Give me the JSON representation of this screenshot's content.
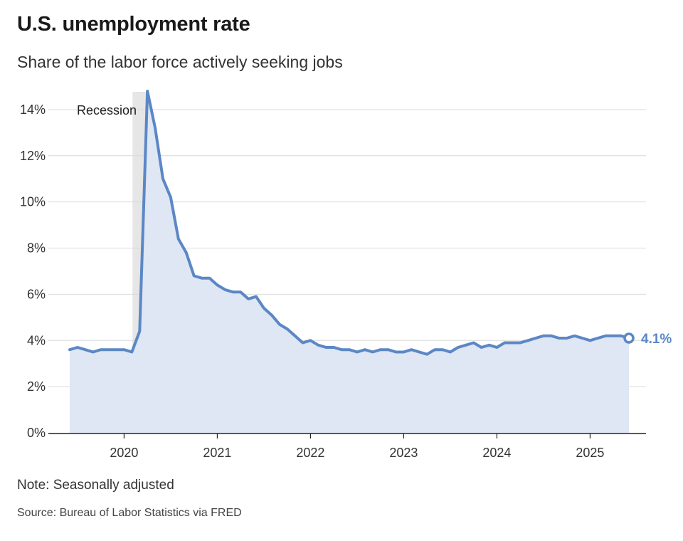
{
  "header": {
    "title": "U.S. unemployment rate",
    "subtitle": "Share of the labor force actively seeking jobs"
  },
  "footer": {
    "note": "Note: Seasonally adjusted",
    "source": "Source: Bureau of Labor Statistics via FRED"
  },
  "colors": {
    "line": "#5b87c5",
    "area": "#dfe6f4",
    "recession": "#e6e6e6",
    "grid": "#d9d9d9",
    "axis": "#222222"
  },
  "chart_data": {
    "type": "area",
    "title": "U.S. unemployment rate",
    "subtitle": "Share of the labor force actively seeking jobs",
    "ylim": [
      0,
      14.8
    ],
    "yticks": [
      0,
      2,
      4,
      6,
      8,
      10,
      12,
      14
    ],
    "ytick_labels": [
      "0%",
      "2%",
      "4%",
      "6%",
      "8%",
      "10%",
      "12%",
      "14%"
    ],
    "xlim": [
      "2019-06",
      "2025-06"
    ],
    "xticks": [
      "2020-01",
      "2021-01",
      "2022-01",
      "2023-01",
      "2024-01",
      "2025-01"
    ],
    "xtick_labels": [
      "2020",
      "2021",
      "2022",
      "2023",
      "2024",
      "2025"
    ],
    "grid": true,
    "annotations": [
      {
        "type": "shaded_range",
        "label": "Recession",
        "start": "2020-03",
        "end": "2020-05"
      },
      {
        "type": "end_label",
        "label": "4.1%",
        "at": "2025-06",
        "value": 4.1
      }
    ],
    "series": [
      {
        "x": [
          "2019-06",
          "2019-07",
          "2019-08",
          "2019-09",
          "2019-10",
          "2019-11",
          "2019-12",
          "2020-01",
          "2020-02",
          "2020-03",
          "2020-04",
          "2020-05",
          "2020-06",
          "2020-07",
          "2020-08",
          "2020-09",
          "2020-10",
          "2020-11",
          "2020-12",
          "2021-01",
          "2021-02",
          "2021-03",
          "2021-04",
          "2021-05",
          "2021-06",
          "2021-07",
          "2021-08",
          "2021-09",
          "2021-10",
          "2021-11",
          "2021-12",
          "2022-01",
          "2022-02",
          "2022-03",
          "2022-04",
          "2022-05",
          "2022-06",
          "2022-07",
          "2022-08",
          "2022-09",
          "2022-10",
          "2022-11",
          "2022-12",
          "2023-01",
          "2023-02",
          "2023-03",
          "2023-04",
          "2023-05",
          "2023-06",
          "2023-07",
          "2023-08",
          "2023-09",
          "2023-10",
          "2023-11",
          "2023-12",
          "2024-01",
          "2024-02",
          "2024-03",
          "2024-04",
          "2024-05",
          "2024-06",
          "2024-07",
          "2024-08",
          "2024-09",
          "2024-10",
          "2024-11",
          "2024-12",
          "2025-01",
          "2025-02",
          "2025-03",
          "2025-04",
          "2025-05",
          "2025-06"
        ],
        "values": [
          3.6,
          3.7,
          3.6,
          3.5,
          3.6,
          3.6,
          3.6,
          3.6,
          3.5,
          4.4,
          14.8,
          13.2,
          11.0,
          10.2,
          8.4,
          7.8,
          6.8,
          6.7,
          6.7,
          6.4,
          6.2,
          6.1,
          6.1,
          5.8,
          5.9,
          5.4,
          5.1,
          4.7,
          4.5,
          4.2,
          3.9,
          4.0,
          3.8,
          3.7,
          3.7,
          3.6,
          3.6,
          3.5,
          3.6,
          3.5,
          3.6,
          3.6,
          3.5,
          3.5,
          3.6,
          3.5,
          3.4,
          3.6,
          3.6,
          3.5,
          3.7,
          3.8,
          3.9,
          3.7,
          3.8,
          3.7,
          3.9,
          3.9,
          3.9,
          4.0,
          4.1,
          4.2,
          4.2,
          4.1,
          4.1,
          4.2,
          4.1,
          4.0,
          4.1,
          4.2,
          4.2,
          4.2,
          4.1
        ]
      }
    ]
  }
}
